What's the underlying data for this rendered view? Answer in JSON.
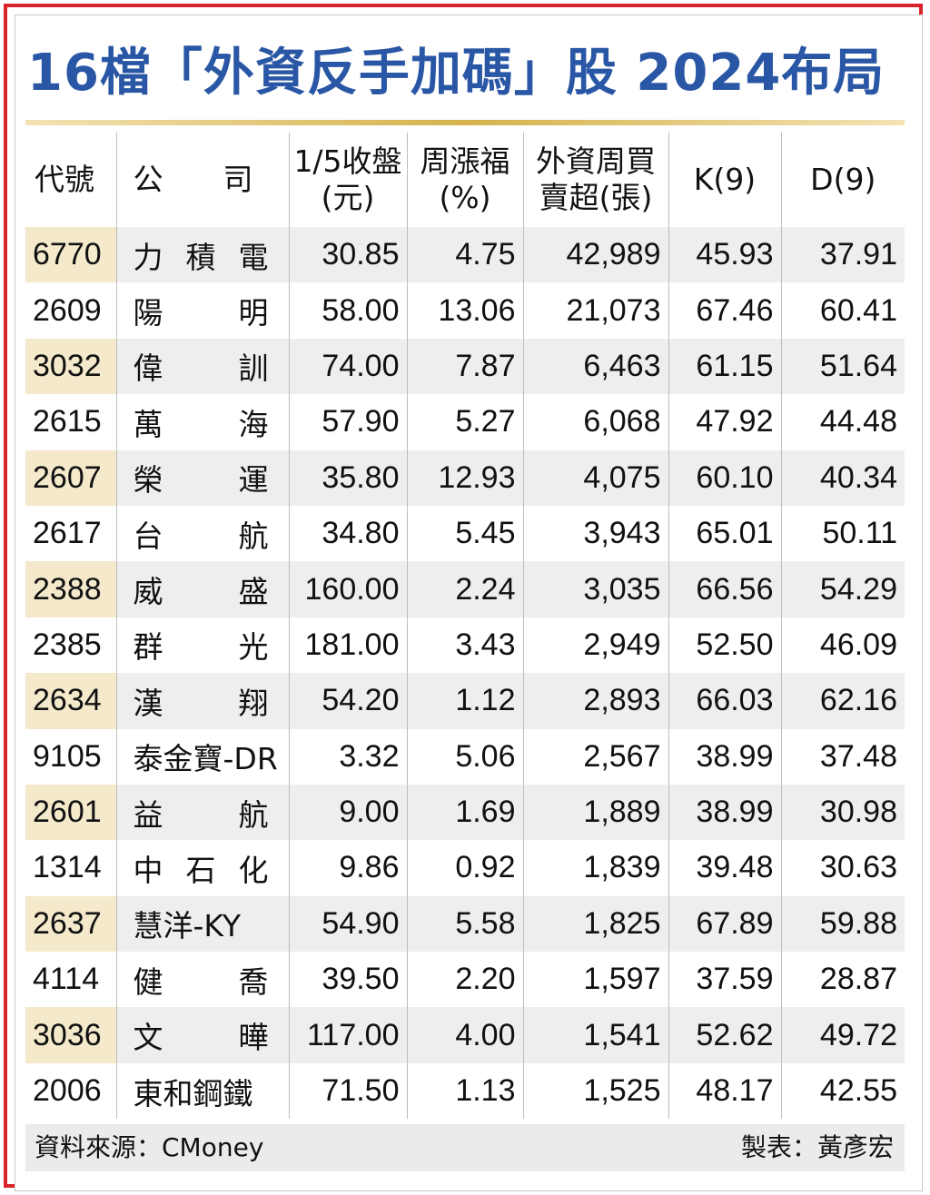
{
  "title": "16檔「外資反手加碼」股 2024布局",
  "headers": {
    "code": "代號",
    "company": "公　　司",
    "close_l1": "1/5收盤",
    "close_l2": "(元)",
    "change_l1": "周漲福",
    "change_l2": "(%)",
    "net_l1": "外資周買",
    "net_l2": "賣超(張)",
    "k": "K(9)",
    "d": "D(9)"
  },
  "rows": [
    {
      "code": "6770",
      "company": "力積電",
      "close": "30.85",
      "change": "4.75",
      "net": "42,989",
      "k": "45.93",
      "d": "37.91"
    },
    {
      "code": "2609",
      "company": "陽明",
      "close": "58.00",
      "change": "13.06",
      "net": "21,073",
      "k": "67.46",
      "d": "60.41"
    },
    {
      "code": "3032",
      "company": "偉訓",
      "close": "74.00",
      "change": "7.87",
      "net": "6,463",
      "k": "61.15",
      "d": "51.64"
    },
    {
      "code": "2615",
      "company": "萬海",
      "close": "57.90",
      "change": "5.27",
      "net": "6,068",
      "k": "47.92",
      "d": "44.48"
    },
    {
      "code": "2607",
      "company": "榮運",
      "close": "35.80",
      "change": "12.93",
      "net": "4,075",
      "k": "60.10",
      "d": "40.34"
    },
    {
      "code": "2617",
      "company": "台航",
      "close": "34.80",
      "change": "5.45",
      "net": "3,943",
      "k": "65.01",
      "d": "50.11"
    },
    {
      "code": "2388",
      "company": "威盛",
      "close": "160.00",
      "change": "2.24",
      "net": "3,035",
      "k": "66.56",
      "d": "54.29"
    },
    {
      "code": "2385",
      "company": "群光",
      "close": "181.00",
      "change": "3.43",
      "net": "2,949",
      "k": "52.50",
      "d": "46.09"
    },
    {
      "code": "2634",
      "company": "漢翔",
      "close": "54.20",
      "change": "1.12",
      "net": "2,893",
      "k": "66.03",
      "d": "62.16"
    },
    {
      "code": "9105",
      "company": "泰金寶-DR",
      "close": "3.32",
      "change": "5.06",
      "net": "2,567",
      "k": "38.99",
      "d": "37.48"
    },
    {
      "code": "2601",
      "company": "益航",
      "close": "9.00",
      "change": "1.69",
      "net": "1,889",
      "k": "38.99",
      "d": "30.98"
    },
    {
      "code": "1314",
      "company": "中石化",
      "close": "9.86",
      "change": "0.92",
      "net": "1,839",
      "k": "39.48",
      "d": "30.63"
    },
    {
      "code": "2637",
      "company": "慧洋-KY",
      "close": "54.90",
      "change": "5.58",
      "net": "1,825",
      "k": "67.89",
      "d": "59.88"
    },
    {
      "code": "4114",
      "company": "健喬",
      "close": "39.50",
      "change": "2.20",
      "net": "1,597",
      "k": "37.59",
      "d": "28.87"
    },
    {
      "code": "3036",
      "company": "文曄",
      "close": "117.00",
      "change": "4.00",
      "net": "1,541",
      "k": "52.62",
      "d": "49.72"
    },
    {
      "code": "2006",
      "company": "東和鋼鐵",
      "close": "71.50",
      "change": "1.13",
      "net": "1,525",
      "k": "48.17",
      "d": "42.55"
    }
  ],
  "footer": {
    "source": "資料來源：CMoney",
    "maker": "製表：黃彥宏"
  },
  "colors": {
    "title": "#2a57a5",
    "frame": "#d9222a",
    "code_highlight": "#f5e9cc",
    "row_stripe": "#eeeeef"
  }
}
